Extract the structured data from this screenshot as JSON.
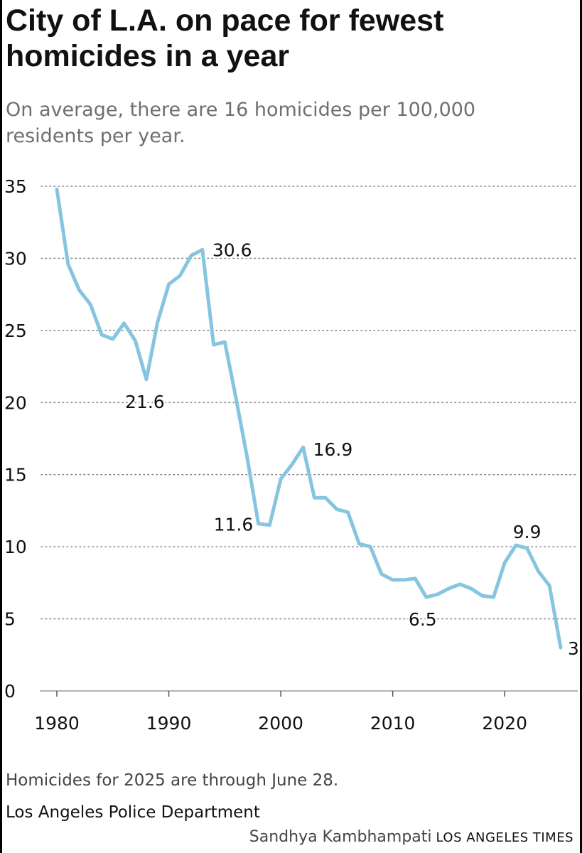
{
  "title": "City of L.A. on pace for fewest homicides in a year",
  "subtitle": "On average, there are 16 homicides per 100,000 residents per year.",
  "note": "Homicides for 2025 are through June 28.",
  "source": "Los Angeles Police Department",
  "credit": {
    "author": "Sandhya Kambhampati",
    "outlet": "LOS ANGELES TIMES"
  },
  "colors": {
    "line": "#86c5e0",
    "grid": "#8a8a8a",
    "text": "#111111"
  },
  "chart_data": {
    "type": "line",
    "title": "City of L.A. on pace for fewest homicides in a year",
    "xlabel": "",
    "ylabel": "",
    "xlim": [
      1980,
      2025
    ],
    "ylim": [
      0,
      35
    ],
    "grid": true,
    "x_ticks": [
      1980,
      1990,
      2000,
      2010,
      2020
    ],
    "y_ticks": [
      0,
      5,
      10,
      15,
      20,
      25,
      30,
      35
    ],
    "series": [
      {
        "x": [
          1980,
          1981,
          1982,
          1983,
          1984,
          1985,
          1986,
          1987,
          1988,
          1989,
          1990,
          1991,
          1992,
          1993,
          1994,
          1995,
          1996,
          1997,
          1998,
          1999,
          2000,
          2001,
          2002,
          2003,
          2004,
          2005,
          2006,
          2007,
          2008,
          2009,
          2010,
          2011,
          2012,
          2013,
          2014,
          2015,
          2016,
          2017,
          2018,
          2019,
          2020,
          2021,
          2022,
          2023,
          2024,
          2025
        ],
        "values": [
          34.8,
          29.6,
          27.8,
          26.8,
          24.7,
          24.4,
          25.5,
          24.3,
          21.6,
          25.6,
          28.2,
          28.8,
          30.2,
          30.6,
          24.0,
          24.2,
          20.3,
          16.2,
          11.6,
          11.5,
          14.7,
          15.7,
          16.9,
          13.4,
          13.4,
          12.6,
          12.4,
          10.2,
          10.0,
          8.1,
          7.7,
          7.7,
          7.8,
          6.5,
          6.7,
          7.1,
          7.4,
          7.1,
          6.6,
          6.5,
          8.9,
          10.1,
          9.9,
          8.3,
          7.3,
          3.0
        ]
      }
    ],
    "annotations": [
      {
        "x": 1993,
        "y": 30.6,
        "text": "30.6"
      },
      {
        "x": 1988,
        "y": 21.6,
        "text": "21.6"
      },
      {
        "x": 2002,
        "y": 16.9,
        "text": "16.9"
      },
      {
        "x": 1998,
        "y": 11.6,
        "text": "11.6"
      },
      {
        "x": 2022,
        "y": 9.9,
        "text": "9.9"
      },
      {
        "x": 2013,
        "y": 6.5,
        "text": "6.5"
      },
      {
        "x": 2025,
        "y": 3.0,
        "text": "3"
      }
    ]
  }
}
